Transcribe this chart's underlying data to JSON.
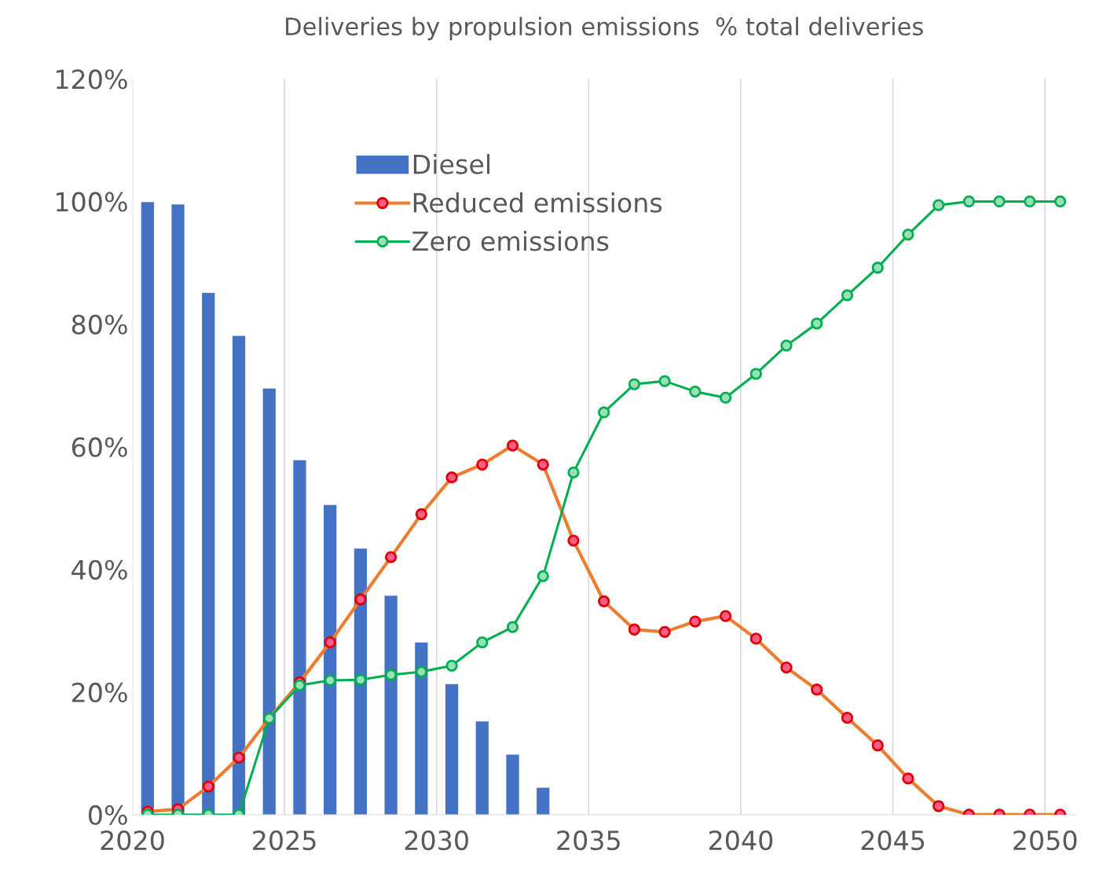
{
  "chart_data": {
    "type": "line",
    "title": "Deliveries by propulsion emissions  % total deliveries",
    "x": [
      2020.5,
      2021.5,
      2022.5,
      2023.5,
      2024.5,
      2025.5,
      2026.5,
      2027.5,
      2028.5,
      2029.5,
      2030.5,
      2031.5,
      2032.5,
      2033.5,
      2034.5,
      2035.5,
      2036.5,
      2037.5,
      2038.5,
      2039.5,
      2040.5,
      2041.5,
      2042.5,
      2043.5,
      2044.5,
      2045.5,
      2046.5,
      2047.5,
      2048.5,
      2049.5,
      2050.5
    ],
    "series": [
      {
        "name": "Diesel",
        "type": "bar",
        "color": "#4472c4",
        "values": [
          99.9,
          99.5,
          85.1,
          78.1,
          69.5,
          57.8,
          50.5,
          43.4,
          35.7,
          28.1,
          21.3,
          15.2,
          9.8,
          4.4,
          0,
          0,
          0,
          0,
          0,
          0,
          0,
          0,
          0,
          0,
          0,
          0,
          0,
          0,
          0,
          0,
          0
        ]
      },
      {
        "name": "Reduced emissions",
        "color": "#ed7d31",
        "marker": "circle",
        "values": [
          0.5,
          0.9,
          4.6,
          9.3,
          15.7,
          21.6,
          28.1,
          35.1,
          42.0,
          49.0,
          55.0,
          57.1,
          60.2,
          57.1,
          44.7,
          34.8,
          30.2,
          29.8,
          31.5,
          32.4,
          28.7,
          24.0,
          20.4,
          15.8,
          11.3,
          5.9,
          1.4,
          0,
          0,
          0,
          0
        ]
      },
      {
        "name": "Zero emissions",
        "color": "#00b050",
        "marker": "circle",
        "values": [
          0,
          0,
          0,
          0,
          15.7,
          21.1,
          21.9,
          22.0,
          22.8,
          23.3,
          24.3,
          28.1,
          30.6,
          38.9,
          55.8,
          65.6,
          70.2,
          70.7,
          69.0,
          68.0,
          71.9,
          76.5,
          80.1,
          84.7,
          89.2,
          94.6,
          99.4,
          100,
          100,
          100,
          100
        ]
      }
    ],
    "xlim": [
      2020,
      2051
    ],
    "xticks": [
      2020,
      2025,
      2030,
      2035,
      2040,
      2045,
      2050
    ],
    "ylim": [
      0,
      120
    ],
    "yticks": [
      {
        "value": 0,
        "label": "0%"
      },
      {
        "value": 20,
        "label": "20%"
      },
      {
        "value": 40,
        "label": "40%"
      },
      {
        "value": 60,
        "label": "60%"
      },
      {
        "value": 80,
        "label": "80%"
      },
      {
        "value": 100,
        "label": "100%"
      },
      {
        "value": 120,
        "label": "120%"
      }
    ],
    "grid": "x",
    "legend": "top",
    "line_style": "solid"
  }
}
